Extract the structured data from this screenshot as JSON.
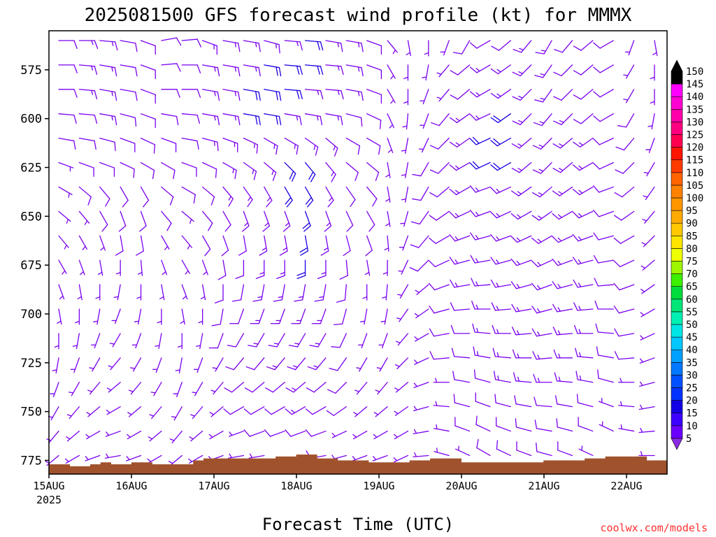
{
  "chart_data": {
    "type": "wind barb time-height profile",
    "title": "2025081500 GFS forecast wind profile (kt) for MMMX",
    "xlabel": "Forecast Time (UTC)",
    "ylabel": "",
    "x_ticks": [
      "15AUG",
      "16AUG",
      "17AUG",
      "18AUG",
      "19AUG",
      "20AUG",
      "21AUG",
      "22AUG"
    ],
    "x_first_tick_year": "2025",
    "x_range": [
      "2025-08-15 00Z",
      "2025-08-22 12Z"
    ],
    "y_ticks": [
      575,
      600,
      625,
      650,
      675,
      700,
      725,
      750,
      775
    ],
    "y_range_hPa": [
      555,
      782
    ],
    "y_axis_inverted": true,
    "grid": false,
    "colorbar": {
      "placement": "right",
      "levels": [
        5,
        10,
        15,
        20,
        25,
        30,
        35,
        40,
        45,
        50,
        55,
        60,
        65,
        70,
        75,
        80,
        85,
        90,
        95,
        100,
        105,
        110,
        115,
        120,
        125,
        130,
        135,
        140,
        145,
        150
      ],
      "colors": [
        "#8a2be2",
        "#6a00ff",
        "#3c00ff",
        "#1400e6",
        "#0032ff",
        "#0050ff",
        "#0078ff",
        "#00a0ff",
        "#00c8ff",
        "#00e6e6",
        "#00f0b4",
        "#00e678",
        "#00dc3c",
        "#3cf000",
        "#a0f500",
        "#f0ff00",
        "#ffe600",
        "#ffc800",
        "#ffaa00",
        "#ff9600",
        "#ff8200",
        "#ff6400",
        "#ff3c00",
        "#ff1400",
        "#ff0050",
        "#ff0080",
        "#ff00aa",
        "#ff00d2",
        "#ff00ff",
        "#000000"
      ]
    },
    "terrain_color": "#a0522d",
    "terrain_pressure_hPa": [
      777,
      777,
      778,
      778,
      777,
      776,
      777,
      777,
      776,
      776,
      777,
      777,
      777,
      777,
      775,
      774,
      774,
      774,
      774,
      774,
      774,
      774,
      773,
      773,
      772,
      772,
      774,
      774,
      775,
      775,
      775,
      776,
      776,
      776,
      776,
      775,
      775,
      774,
      774,
      774,
      776,
      776,
      776,
      776,
      776,
      776,
      776,
      776,
      775,
      775,
      775,
      775,
      774,
      774,
      773,
      773,
      773,
      773,
      775,
      775
    ],
    "barb_color": "#7a00f0",
    "barb_color_strong": "#1a00e0",
    "wind": {
      "levels_hPa": [
        560,
        572.5,
        585,
        597.5,
        610,
        622.5,
        635,
        647.5,
        660,
        672.5,
        685,
        697.5,
        710,
        722.5,
        735,
        747.5,
        760,
        772.5
      ],
      "times": [
        "15AUG 00Z",
        "15AUG 06Z",
        "15AUG 12Z",
        "15AUG 18Z",
        "16AUG 00Z",
        "16AUG 06Z",
        "16AUG 12Z",
        "16AUG 18Z",
        "17AUG 00Z",
        "17AUG 06Z",
        "17AUG 12Z",
        "17AUG 18Z",
        "18AUG 00Z",
        "18AUG 06Z",
        "18AUG 12Z",
        "18AUG 18Z",
        "19AUG 00Z",
        "19AUG 06Z",
        "19AUG 12Z",
        "19AUG 18Z",
        "20AUG 00Z",
        "20AUG 06Z",
        "20AUG 12Z",
        "20AUG 18Z",
        "21AUG 00Z",
        "21AUG 06Z",
        "21AUG 12Z",
        "21AUG 18Z",
        "22AUG 00Z",
        "22AUG 06Z"
      ],
      "direction_deg": [
        [
          90,
          90,
          95,
          100,
          110,
          80,
          85,
          110,
          100,
          100,
          105,
          95,
          95,
          100,
          100,
          110,
          140,
          170,
          180,
          200,
          210,
          240,
          230,
          220,
          210,
          220,
          230,
          240,
          200,
          170
        ],
        [
          90,
          95,
          100,
          100,
          110,
          85,
          90,
          100,
          100,
          100,
          100,
          95,
          95,
          95,
          100,
          110,
          150,
          180,
          190,
          220,
          230,
          240,
          235,
          225,
          215,
          225,
          230,
          240,
          210,
          180
        ],
        [
          90,
          95,
          100,
          100,
          110,
          90,
          90,
          100,
          100,
          100,
          100,
          95,
          95,
          95,
          100,
          110,
          150,
          180,
          200,
          220,
          230,
          240,
          235,
          225,
          215,
          225,
          230,
          240,
          210,
          180
        ],
        [
          95,
          95,
          100,
          105,
          110,
          100,
          95,
          100,
          100,
          100,
          100,
          100,
          100,
          100,
          105,
          115,
          155,
          185,
          200,
          220,
          235,
          245,
          235,
          225,
          220,
          225,
          230,
          240,
          210,
          190
        ],
        [
          100,
          100,
          105,
          110,
          115,
          110,
          100,
          105,
          110,
          115,
          120,
          120,
          125,
          130,
          120,
          120,
          160,
          190,
          205,
          225,
          235,
          245,
          240,
          230,
          225,
          230,
          235,
          245,
          220,
          200
        ],
        [
          110,
          110,
          110,
          115,
          120,
          120,
          110,
          115,
          120,
          125,
          130,
          135,
          140,
          140,
          130,
          130,
          170,
          190,
          210,
          225,
          240,
          245,
          240,
          230,
          225,
          230,
          240,
          245,
          225,
          210
        ],
        [
          120,
          130,
          140,
          150,
          150,
          130,
          120,
          130,
          140,
          145,
          150,
          150,
          150,
          150,
          145,
          140,
          170,
          190,
          210,
          230,
          240,
          250,
          245,
          235,
          230,
          235,
          240,
          250,
          230,
          215
        ],
        [
          130,
          140,
          150,
          160,
          160,
          140,
          130,
          140,
          150,
          160,
          160,
          160,
          160,
          160,
          155,
          150,
          170,
          195,
          215,
          235,
          245,
          250,
          245,
          240,
          235,
          240,
          245,
          250,
          235,
          220
        ],
        [
          140,
          150,
          160,
          170,
          170,
          150,
          140,
          150,
          160,
          170,
          170,
          170,
          170,
          170,
          165,
          160,
          175,
          200,
          220,
          240,
          250,
          255,
          250,
          245,
          240,
          245,
          250,
          255,
          240,
          225
        ],
        [
          150,
          160,
          170,
          180,
          175,
          160,
          150,
          160,
          170,
          180,
          180,
          180,
          180,
          180,
          175,
          170,
          180,
          205,
          225,
          245,
          255,
          260,
          255,
          250,
          245,
          250,
          255,
          260,
          245,
          230
        ],
        [
          160,
          170,
          180,
          190,
          180,
          170,
          160,
          170,
          180,
          190,
          190,
          190,
          190,
          190,
          185,
          180,
          185,
          210,
          230,
          250,
          260,
          265,
          260,
          255,
          250,
          255,
          260,
          265,
          250,
          235
        ],
        [
          170,
          180,
          190,
          200,
          190,
          180,
          170,
          180,
          190,
          200,
          200,
          200,
          200,
          200,
          195,
          190,
          190,
          215,
          235,
          255,
          265,
          270,
          265,
          260,
          255,
          260,
          265,
          270,
          255,
          240
        ],
        [
          180,
          190,
          200,
          210,
          200,
          190,
          180,
          190,
          200,
          210,
          210,
          210,
          210,
          210,
          205,
          200,
          200,
          220,
          240,
          260,
          270,
          275,
          270,
          265,
          260,
          265,
          270,
          275,
          260,
          245
        ],
        [
          190,
          200,
          210,
          220,
          210,
          200,
          190,
          200,
          210,
          220,
          220,
          220,
          220,
          220,
          215,
          210,
          210,
          225,
          245,
          265,
          275,
          280,
          275,
          270,
          265,
          270,
          275,
          280,
          265,
          250
        ],
        [
          200,
          210,
          220,
          230,
          220,
          210,
          200,
          210,
          220,
          230,
          230,
          230,
          230,
          230,
          225,
          220,
          220,
          230,
          250,
          270,
          280,
          285,
          280,
          275,
          270,
          275,
          280,
          285,
          270,
          255
        ],
        [
          210,
          220,
          230,
          240,
          230,
          220,
          210,
          220,
          230,
          240,
          240,
          240,
          240,
          240,
          235,
          230,
          230,
          235,
          255,
          275,
          285,
          290,
          285,
          280,
          275,
          280,
          285,
          290,
          275,
          260
        ],
        [
          220,
          230,
          240,
          250,
          240,
          230,
          220,
          230,
          240,
          250,
          250,
          250,
          250,
          250,
          245,
          240,
          240,
          240,
          260,
          280,
          290,
          295,
          290,
          285,
          280,
          285,
          290,
          295,
          280,
          265
        ],
        [
          230,
          240,
          250,
          260,
          250,
          240,
          230,
          240,
          250,
          260,
          260,
          260,
          260,
          260,
          255,
          250,
          250,
          245,
          265,
          285,
          295,
          300,
          295,
          290,
          285,
          290,
          295,
          300,
          285,
          270
        ]
      ],
      "speed_kt": [
        [
          10,
          15,
          15,
          10,
          10,
          10,
          10,
          15,
          15,
          15,
          15,
          15,
          20,
          15,
          15,
          10,
          5,
          5,
          5,
          5,
          10,
          10,
          10,
          15,
          15,
          10,
          10,
          10,
          5,
          5
        ],
        [
          10,
          15,
          15,
          10,
          10,
          10,
          10,
          15,
          15,
          15,
          20,
          20,
          20,
          15,
          15,
          10,
          5,
          5,
          5,
          5,
          10,
          15,
          15,
          15,
          15,
          10,
          10,
          10,
          5,
          5
        ],
        [
          10,
          15,
          15,
          10,
          10,
          10,
          10,
          15,
          15,
          20,
          20,
          20,
          15,
          15,
          15,
          10,
          5,
          5,
          5,
          5,
          10,
          15,
          15,
          15,
          15,
          10,
          10,
          10,
          5,
          5
        ],
        [
          10,
          10,
          15,
          10,
          10,
          10,
          10,
          15,
          15,
          20,
          20,
          15,
          15,
          15,
          10,
          10,
          5,
          5,
          5,
          10,
          15,
          15,
          20,
          15,
          15,
          15,
          10,
          10,
          10,
          5
        ],
        [
          10,
          10,
          10,
          10,
          10,
          10,
          10,
          15,
          15,
          15,
          15,
          15,
          15,
          15,
          10,
          10,
          5,
          5,
          5,
          10,
          15,
          20,
          20,
          15,
          15,
          15,
          15,
          10,
          10,
          5
        ],
        [
          5,
          10,
          10,
          10,
          10,
          10,
          10,
          10,
          15,
          15,
          15,
          20,
          20,
          15,
          10,
          10,
          5,
          5,
          10,
          10,
          15,
          20,
          20,
          15,
          15,
          15,
          15,
          10,
          10,
          5
        ],
        [
          5,
          10,
          10,
          10,
          10,
          10,
          10,
          10,
          15,
          15,
          15,
          20,
          20,
          15,
          10,
          10,
          5,
          5,
          10,
          10,
          15,
          15,
          15,
          15,
          15,
          15,
          15,
          10,
          10,
          5
        ],
        [
          5,
          5,
          10,
          10,
          10,
          10,
          5,
          10,
          10,
          15,
          15,
          15,
          20,
          15,
          10,
          10,
          5,
          5,
          10,
          10,
          15,
          15,
          15,
          15,
          15,
          15,
          15,
          10,
          10,
          5
        ],
        [
          5,
          5,
          5,
          10,
          10,
          5,
          5,
          10,
          10,
          10,
          15,
          15,
          20,
          15,
          10,
          10,
          5,
          5,
          10,
          10,
          15,
          15,
          15,
          15,
          15,
          15,
          15,
          10,
          10,
          5
        ],
        [
          5,
          5,
          5,
          5,
          5,
          5,
          5,
          5,
          10,
          10,
          15,
          15,
          20,
          15,
          10,
          5,
          5,
          5,
          10,
          10,
          15,
          15,
          15,
          15,
          15,
          15,
          15,
          10,
          10,
          5
        ],
        [
          5,
          5,
          5,
          5,
          5,
          5,
          5,
          5,
          10,
          10,
          15,
          15,
          15,
          15,
          10,
          5,
          5,
          5,
          5,
          10,
          15,
          15,
          15,
          15,
          15,
          15,
          15,
          10,
          10,
          5
        ],
        [
          5,
          5,
          5,
          5,
          5,
          5,
          5,
          5,
          10,
          10,
          15,
          15,
          15,
          15,
          10,
          5,
          5,
          5,
          5,
          10,
          10,
          15,
          15,
          15,
          15,
          15,
          15,
          10,
          10,
          5
        ],
        [
          5,
          5,
          5,
          5,
          5,
          5,
          5,
          5,
          10,
          10,
          15,
          15,
          15,
          15,
          10,
          5,
          5,
          5,
          5,
          10,
          10,
          15,
          15,
          15,
          15,
          15,
          15,
          10,
          10,
          5
        ],
        [
          5,
          5,
          5,
          5,
          5,
          5,
          5,
          5,
          5,
          10,
          10,
          15,
          15,
          15,
          10,
          5,
          5,
          5,
          5,
          10,
          10,
          15,
          15,
          15,
          15,
          15,
          15,
          10,
          10,
          5
        ],
        [
          5,
          5,
          5,
          5,
          5,
          5,
          5,
          5,
          5,
          10,
          10,
          10,
          15,
          10,
          10,
          5,
          5,
          5,
          5,
          5,
          10,
          10,
          15,
          15,
          15,
          15,
          15,
          10,
          5,
          5
        ],
        [
          5,
          5,
          5,
          5,
          5,
          5,
          5,
          5,
          5,
          10,
          10,
          10,
          15,
          10,
          10,
          5,
          5,
          5,
          5,
          5,
          10,
          10,
          10,
          10,
          10,
          10,
          10,
          5,
          5,
          5
        ],
        [
          5,
          5,
          5,
          5,
          5,
          5,
          5,
          5,
          5,
          5,
          10,
          10,
          10,
          10,
          5,
          5,
          5,
          5,
          5,
          5,
          10,
          10,
          10,
          10,
          10,
          10,
          10,
          5,
          5,
          5
        ],
        [
          5,
          5,
          5,
          5,
          5,
          5,
          5,
          5,
          5,
          5,
          5,
          10,
          10,
          10,
          5,
          5,
          5,
          5,
          5,
          5,
          5,
          10,
          10,
          10,
          10,
          10,
          5,
          5,
          5,
          5
        ]
      ]
    }
  },
  "footer": {
    "credit": "coolwx.com/models",
    "credit_color": "#ff3030"
  }
}
